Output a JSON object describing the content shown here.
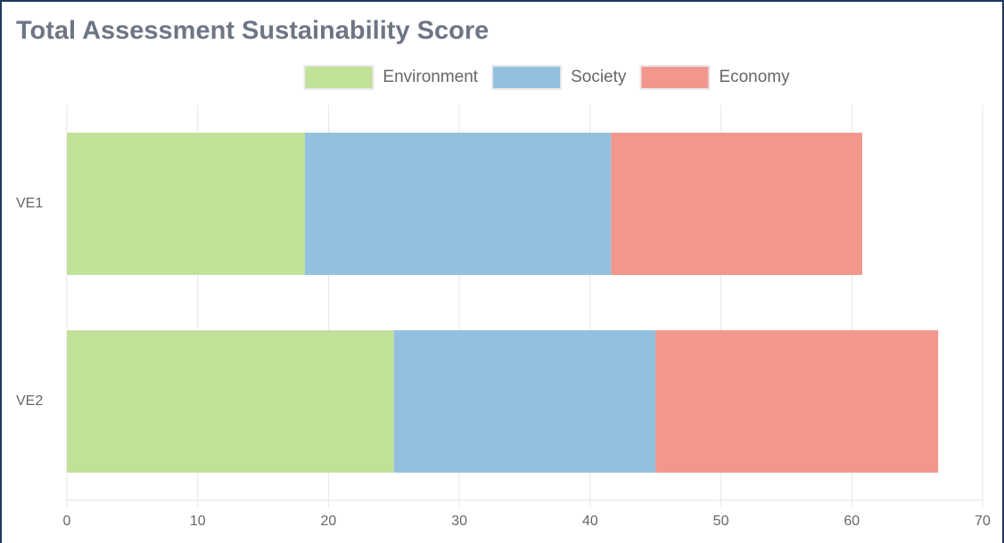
{
  "chart_data": {
    "type": "stacked-bar-horizontal",
    "title": "Total Assessment Sustainability Score",
    "categories": [
      "VE1",
      "VE2"
    ],
    "series": [
      {
        "name": "Environment",
        "color": "#c1e198",
        "values": [
          18.2,
          25.0
        ]
      },
      {
        "name": "Society",
        "color": "#92c0de",
        "values": [
          23.4,
          20.0
        ]
      },
      {
        "name": "Economy",
        "color": "#f2978b",
        "values": [
          19.2,
          21.6
        ]
      }
    ],
    "xlim": [
      0,
      70
    ],
    "xticks": [
      0,
      10,
      20,
      30,
      40,
      50,
      60,
      70
    ],
    "grid": true,
    "legend": "top"
  }
}
